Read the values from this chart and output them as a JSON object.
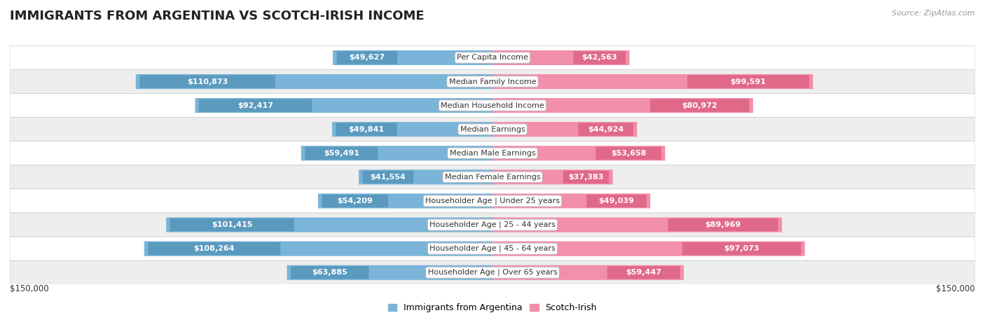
{
  "title": "IMMIGRANTS FROM ARGENTINA VS SCOTCH-IRISH INCOME",
  "source": "Source: ZipAtlas.com",
  "categories": [
    "Per Capita Income",
    "Median Family Income",
    "Median Household Income",
    "Median Earnings",
    "Median Male Earnings",
    "Median Female Earnings",
    "Householder Age | Under 25 years",
    "Householder Age | 25 - 44 years",
    "Householder Age | 45 - 64 years",
    "Householder Age | Over 65 years"
  ],
  "argentina_values": [
    49627,
    110873,
    92417,
    49841,
    59491,
    41554,
    54209,
    101415,
    108264,
    63885
  ],
  "scotchirish_values": [
    42563,
    99591,
    80972,
    44924,
    53658,
    37383,
    49039,
    89969,
    97073,
    59447
  ],
  "argentina_labels": [
    "$49,627",
    "$110,873",
    "$92,417",
    "$49,841",
    "$59,491",
    "$41,554",
    "$54,209",
    "$101,415",
    "$108,264",
    "$63,885"
  ],
  "scotchirish_labels": [
    "$42,563",
    "$99,591",
    "$80,972",
    "$44,924",
    "$53,658",
    "$37,383",
    "$49,039",
    "$89,969",
    "$97,073",
    "$59,447"
  ],
  "argentina_color": "#7ab4d8",
  "scotchirish_color": "#f28faa",
  "argentina_color_dark": "#5a9abf",
  "scotchirish_color_dark": "#e06888",
  "max_value": 150000,
  "background_color": "#ffffff",
  "row_colors": [
    "#ffffff",
    "#eeeeee"
  ],
  "bar_height": 0.62,
  "inside_label_threshold": 30000,
  "xlabel_left": "$150,000",
  "xlabel_right": "$150,000",
  "legend_argentina": "Immigrants from Argentina",
  "legend_scotchirish": "Scotch-Irish",
  "title_fontsize": 13,
  "source_fontsize": 8,
  "label_fontsize": 8,
  "category_fontsize": 8
}
